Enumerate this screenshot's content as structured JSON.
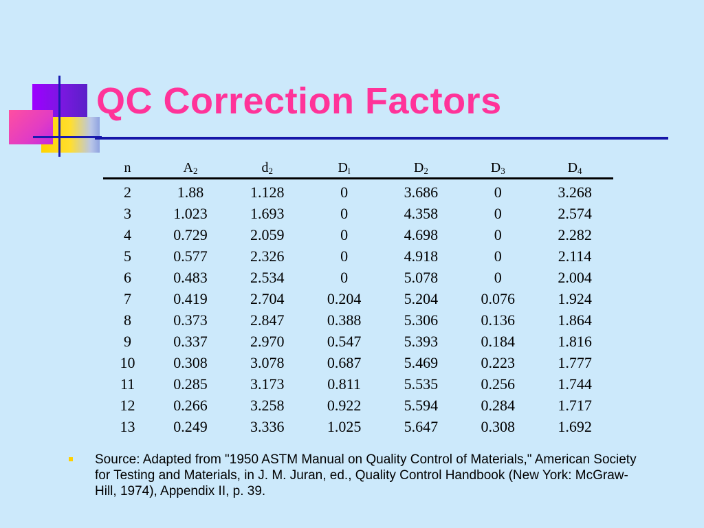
{
  "title": "QC Correction Factors",
  "colors": {
    "title": "#ff3399",
    "rule": "#1616a8",
    "background": "#cce9fb",
    "bullet": "#ffd000"
  },
  "table": {
    "headers": [
      {
        "base": "n",
        "sub": ""
      },
      {
        "base": "A",
        "sub": "2"
      },
      {
        "base": "d",
        "sub": "2"
      },
      {
        "base": "D",
        "sub": "l"
      },
      {
        "base": "D",
        "sub": "2"
      },
      {
        "base": "D",
        "sub": "3"
      },
      {
        "base": "D",
        "sub": "4"
      }
    ],
    "rows": [
      [
        "2",
        "1.88",
        "1.128",
        "0",
        "3.686",
        "0",
        "3.268"
      ],
      [
        "3",
        "1.023",
        "1.693",
        "0",
        "4.358",
        "0",
        "2.574"
      ],
      [
        "4",
        "0.729",
        "2.059",
        "0",
        "4.698",
        "0",
        "2.282"
      ],
      [
        "5",
        "0.577",
        "2.326",
        "0",
        "4.918",
        "0",
        "2.114"
      ],
      [
        "6",
        "0.483",
        "2.534",
        "0",
        "5.078",
        "0",
        "2.004"
      ],
      [
        "7",
        "0.419",
        "2.704",
        "0.204",
        "5.204",
        "0.076",
        "1.924"
      ],
      [
        "8",
        "0.373",
        "2.847",
        "0.388",
        "5.306",
        "0.136",
        "1.864"
      ],
      [
        "9",
        "0.337",
        "2.970",
        "0.547",
        "5.393",
        "0.184",
        "1.816"
      ],
      [
        "10",
        "0.308",
        "3.078",
        "0.687",
        "5.469",
        "0.223",
        "1.777"
      ],
      [
        "11",
        "0.285",
        "3.173",
        "0.811",
        "5.535",
        "0.256",
        "1.744"
      ],
      [
        "12",
        "0.266",
        "3.258",
        "0.922",
        "5.594",
        "0.284",
        "1.717"
      ],
      [
        "13",
        "0.249",
        "3.336",
        "1.025",
        "5.647",
        "0.308",
        "1.692"
      ]
    ]
  },
  "source": "Source: Adapted from \"1950 ASTM Manual on Quality Control of Materials,\" American Society for Testing and Materials, in J. M. Juran, ed., Quality Control Handbook (New York: McGraw-Hill, 1974), Appendix II, p. 39."
}
